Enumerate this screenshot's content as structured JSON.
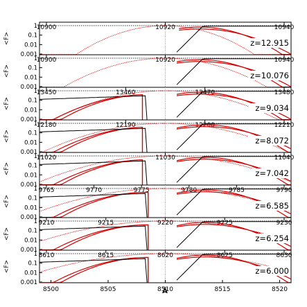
{
  "chart_data": {
    "type": "line",
    "xlabel": "Å",
    "ylabel": "<F>",
    "y_scale": "log",
    "ylim": [
      0.001,
      1
    ],
    "y_ticks": [
      "1",
      "0.1",
      "0.01",
      "0.001"
    ],
    "colors": {
      "model": "#000000",
      "fit": "#d40000",
      "reference": "#888888"
    },
    "panels": [
      {
        "z_label": "z=12.915",
        "top_ticks": [
          "10900",
          "10920",
          "10940"
        ]
      },
      {
        "z_label": "z=10.076",
        "top_ticks": [
          "10900",
          "10920",
          "10940"
        ]
      },
      {
        "z_label": "z=9.034",
        "top_ticks": [
          "13450",
          "13460",
          "13470",
          "13480"
        ]
      },
      {
        "z_label": "z=8.072",
        "top_ticks": [
          "12180",
          "12190",
          "12200",
          "12210"
        ]
      },
      {
        "z_label": "z=7.042",
        "top_ticks": [
          "11020",
          "11030",
          "11040"
        ]
      },
      {
        "z_label": "z=6.585",
        "top_ticks": [
          "9765",
          "9770",
          "9775",
          "9780",
          "9785",
          "9790"
        ]
      },
      {
        "z_label": "z=6.254",
        "top_ticks": [
          "9210",
          "9215",
          "9220",
          "9225",
          "9230"
        ]
      },
      {
        "z_label": "z=6.000",
        "top_ticks": [
          "8610",
          "8615",
          "8620",
          "8625",
          "8630"
        ]
      }
    ],
    "bottom_ticks": [
      "8500",
      "8505",
      "8510",
      "8515",
      "8520"
    ],
    "x_range": [
      8499,
      8521
    ]
  }
}
